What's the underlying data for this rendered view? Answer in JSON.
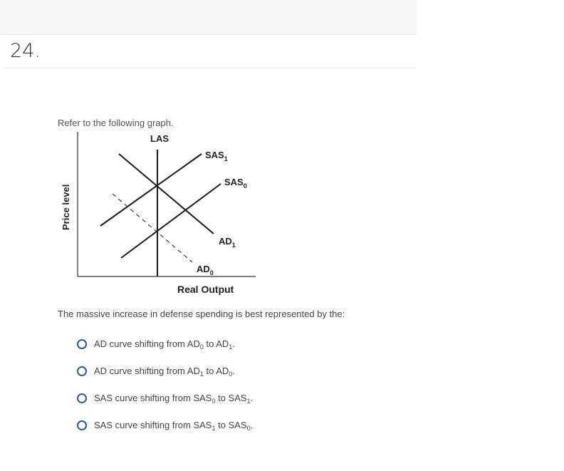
{
  "question_number": "24.",
  "intro": "Refer to the following graph.",
  "graph": {
    "y_axis_label": "Price level",
    "x_axis_label": "Real Output",
    "curves": {
      "las": {
        "label": "LAS",
        "sub": ""
      },
      "sas1": {
        "label": "SAS",
        "sub": "1"
      },
      "sas0": {
        "label": "SAS",
        "sub": "0"
      },
      "ad1": {
        "label": "AD",
        "sub": "1"
      },
      "ad0": {
        "label": "AD",
        "sub": "0",
        "style": "dashed"
      }
    },
    "line_color": "#1a1a1a"
  },
  "prompt": "The massive increase in defense spending is best represented by the:",
  "options": [
    {
      "a": "AD curve shifting from ",
      "b": "AD",
      "s1": "0",
      "c": " to ",
      "d": "AD",
      "s2": "1",
      "e": ".",
      "selected": false
    },
    {
      "a": "AD curve shifting from ",
      "b": "AD",
      "s1": "1",
      "c": " to ",
      "d": "AD",
      "s2": "0",
      "e": ".",
      "selected": false
    },
    {
      "a": "SAS curve shifting from ",
      "b": "SAS",
      "s1": "0",
      "c": " to ",
      "d": "SAS",
      "s2": "1",
      "e": ".",
      "selected": false
    },
    {
      "a": "SAS curve shifting from ",
      "b": "SAS",
      "s1": "1",
      "c": " to ",
      "d": "SAS",
      "s2": "0",
      "e": ".",
      "selected": false
    }
  ],
  "colors": {
    "radio": "#2d5b8f",
    "text": "#444444"
  }
}
